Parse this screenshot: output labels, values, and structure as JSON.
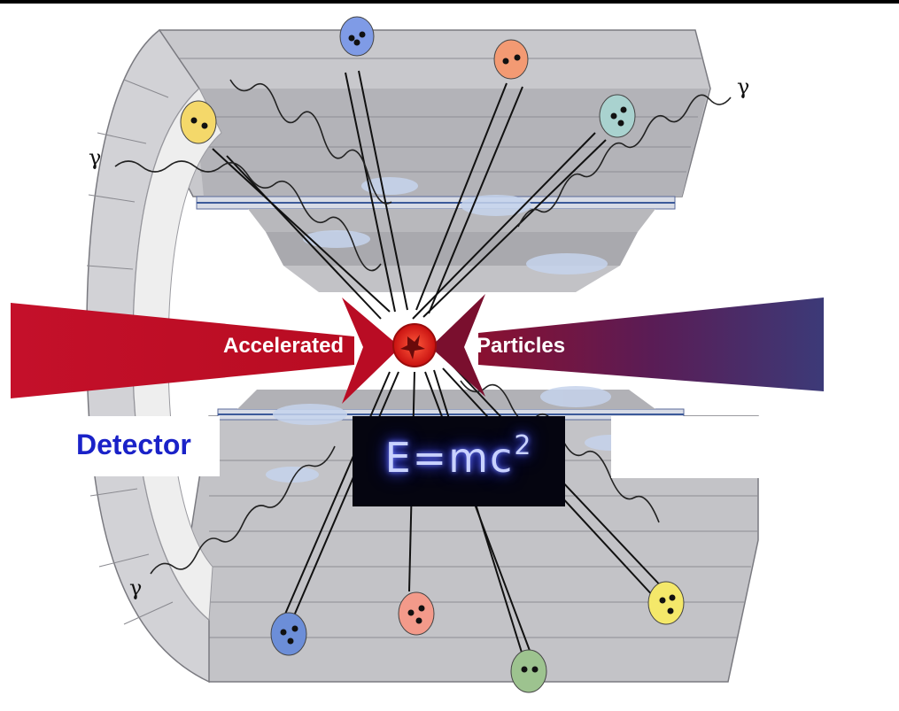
{
  "beam": {
    "left_label": "Accelerated",
    "right_label": "Particles",
    "left_color": "#c4102a",
    "right_color": "#3c3a78"
  },
  "detector_label": "Detector",
  "formula": {
    "base": "E=mc",
    "exponent": "2"
  },
  "gamma_symbol": "γ",
  "colors": {
    "detector_label": "#1a22c8",
    "collision": "#e0231c",
    "particle_orange": "#f39a73",
    "particle_yellow": "#f4d86a",
    "particle_blue": "#7f9be6",
    "particle_teal": "#a9d2cf",
    "particle_green": "#9dc38f"
  }
}
